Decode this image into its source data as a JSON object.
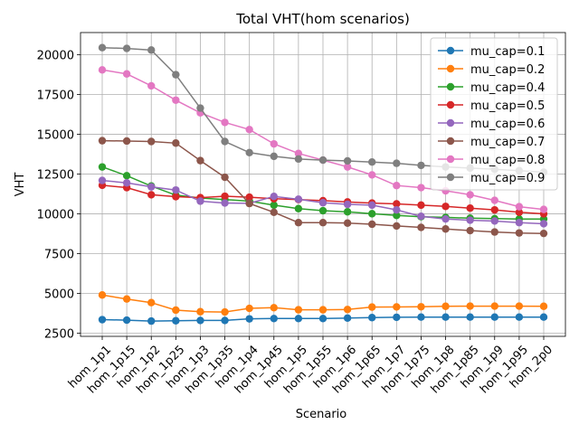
{
  "chart_data": {
    "type": "line",
    "title": "Total VHT(hom scenarios)",
    "xlabel": "Scenario",
    "ylabel": "VHT",
    "ylim": [
      2300,
      21400
    ],
    "yticks": [
      2500,
      5000,
      7500,
      10000,
      12500,
      15000,
      17500,
      20000
    ],
    "ytick_labels": [
      "2500",
      "5000",
      "7500",
      "10000",
      "12500",
      "15000",
      "17500",
      "20000"
    ],
    "grid": true,
    "legend_position": "top-right",
    "categories": [
      "hom_1p1",
      "hom_1p15",
      "hom_1p2",
      "hom_1p25",
      "hom_1p3",
      "hom_1p35",
      "hom_1p4",
      "hom_1p45",
      "hom_1p5",
      "hom_1p55",
      "hom_1p6",
      "hom_1p65",
      "hom_1p7",
      "hom_1p75",
      "hom_1p8",
      "hom_1p85",
      "hom_1p9",
      "hom_1p95",
      "hom_2p0"
    ],
    "series": [
      {
        "name": "mu_cap=0.1",
        "color": "#1f77b4",
        "values": [
          3350,
          3320,
          3260,
          3280,
          3300,
          3300,
          3400,
          3420,
          3420,
          3420,
          3450,
          3480,
          3500,
          3510,
          3510,
          3510,
          3510,
          3510,
          3510
        ]
      },
      {
        "name": "mu_cap=0.2",
        "color": "#ff7f0e",
        "values": [
          4900,
          4650,
          4420,
          3950,
          3850,
          3830,
          4060,
          4100,
          3970,
          3970,
          3990,
          4140,
          4150,
          4160,
          4190,
          4200,
          4200,
          4200,
          4190
        ]
      },
      {
        "name": "mu_cap=0.4",
        "color": "#2ca02c",
        "values": [
          12950,
          12400,
          11750,
          11180,
          11000,
          10900,
          10800,
          10550,
          10330,
          10200,
          10130,
          10010,
          9900,
          9820,
          9780,
          9730,
          9700,
          9680,
          9680
        ]
      },
      {
        "name": "mu_cap=0.5",
        "color": "#d62728",
        "values": [
          11800,
          11650,
          11200,
          11080,
          11020,
          11110,
          11050,
          10950,
          10900,
          10830,
          10750,
          10680,
          10630,
          10550,
          10470,
          10360,
          10250,
          10100,
          10000
        ]
      },
      {
        "name": "mu_cap=0.6",
        "color": "#9467bd",
        "values": [
          12100,
          11950,
          11700,
          11500,
          10800,
          10680,
          10660,
          11100,
          10920,
          10700,
          10600,
          10550,
          10250,
          9850,
          9680,
          9600,
          9550,
          9450,
          9380
        ]
      },
      {
        "name": "mu_cap=0.7",
        "color": "#8c564b",
        "values": [
          14600,
          14580,
          14550,
          14450,
          13350,
          12300,
          10650,
          10100,
          9450,
          9450,
          9420,
          9350,
          9240,
          9150,
          9050,
          8950,
          8860,
          8800,
          8770
        ]
      },
      {
        "name": "mu_cap=0.8",
        "color": "#e377c2",
        "values": [
          19050,
          18800,
          18050,
          17150,
          16350,
          15750,
          15300,
          14400,
          13800,
          13380,
          12950,
          12450,
          11780,
          11650,
          11450,
          11200,
          10850,
          10450,
          10280
        ]
      },
      {
        "name": "mu_cap=0.9",
        "color": "#7f7f7f",
        "values": [
          20450,
          20400,
          20300,
          18750,
          16650,
          14550,
          13850,
          13620,
          13450,
          13380,
          13330,
          13260,
          13180,
          13050,
          12950,
          12880,
          12800,
          12720,
          12620
        ]
      }
    ]
  }
}
